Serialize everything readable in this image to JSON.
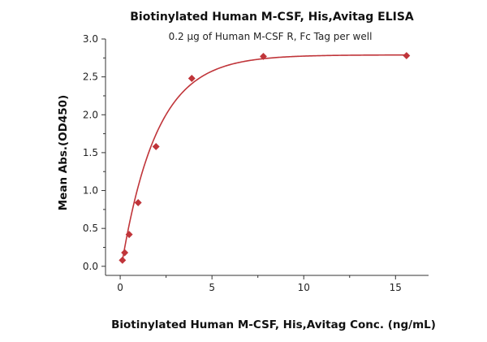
{
  "chart_data": {
    "type": "scatter",
    "title": "Biotinylated Human M-CSF, His,Avitag ELISA",
    "subtitle": "0.2 μg of Human M-CSF R, Fc Tag per well",
    "xlabel": "Biotinylated Human M-CSF, His,Avitag Conc. (ng/mL)",
    "ylabel": "Mean Abs.(OD450)",
    "xlim": [
      -0.8,
      16.8
    ],
    "ylim": [
      -0.12,
      3.0
    ],
    "x_ticks": [
      0,
      5,
      10,
      15
    ],
    "y_ticks": [
      0.0,
      0.5,
      1.0,
      1.5,
      2.0,
      2.5,
      3.0
    ],
    "x_tick_labels": [
      "0",
      "5",
      "10",
      "15"
    ],
    "y_tick_labels": [
      "0.0",
      "0.5",
      "1.0",
      "1.5",
      "2.0",
      "2.5",
      "3.0"
    ],
    "grid": false,
    "legend": "none",
    "series": [
      {
        "marker": "diamond",
        "color": "#c0353a",
        "points": [
          {
            "x": 0.122,
            "y": 0.08
          },
          {
            "x": 0.244,
            "y": 0.18
          },
          {
            "x": 0.488,
            "y": 0.42
          },
          {
            "x": 0.977,
            "y": 0.84
          },
          {
            "x": 1.95,
            "y": 1.58
          },
          {
            "x": 3.9,
            "y": 2.48
          },
          {
            "x": 7.8,
            "y": 2.77
          },
          {
            "x": 15.6,
            "y": 2.78
          }
        ]
      }
    ],
    "fit_curve": {
      "color": "#c0353a",
      "model": "exponential-saturation",
      "y0": -0.1,
      "ymax": 2.79,
      "k": 0.52
    }
  }
}
